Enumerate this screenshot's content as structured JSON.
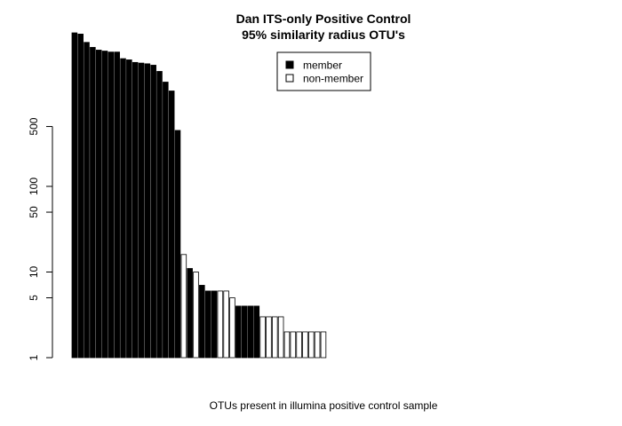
{
  "chart_data": {
    "type": "bar",
    "title": "Dan ITS-only Positive Control",
    "subtitle": "95% similarity radius OTU's",
    "xlabel": "OTUs present in illumina positive control sample",
    "ylabel": "",
    "y_scale": "log",
    "ylim": [
      1,
      10000
    ],
    "y_ticks": [
      1,
      5,
      10,
      50,
      100,
      500
    ],
    "y_tick_labels": [
      "1",
      "5",
      "10",
      "50",
      "100",
      "500"
    ],
    "grid": false,
    "legend_position": "top-center",
    "legend": [
      {
        "label": "member",
        "fill": "#000000"
      },
      {
        "label": "non-member",
        "fill": "#ffffff"
      }
    ],
    "bar_outline_color": "#000000",
    "series": [
      {
        "values": [
          6200,
          6000,
          4800,
          4200,
          3900,
          3800,
          3700,
          3700,
          3100,
          3000,
          2800,
          2750,
          2700,
          2600,
          2200,
          1650,
          1300,
          450,
          16,
          11,
          10,
          7,
          6,
          6,
          6,
          6,
          5,
          4,
          4,
          4,
          4,
          3,
          3,
          3,
          3,
          2,
          2,
          2,
          2,
          2,
          2,
          2,
          1,
          1,
          1,
          1,
          1,
          1,
          1,
          1,
          1,
          1,
          1,
          1,
          1,
          1,
          1,
          1,
          1,
          1,
          1,
          1,
          1,
          1,
          1,
          1,
          1,
          1,
          1,
          1,
          1,
          1,
          1,
          1,
          1,
          1,
          1,
          1,
          1,
          1,
          1,
          1,
          1
        ],
        "member": [
          true,
          true,
          true,
          true,
          true,
          true,
          true,
          true,
          true,
          true,
          true,
          true,
          true,
          true,
          true,
          true,
          true,
          true,
          false,
          true,
          false,
          true,
          true,
          true,
          false,
          false,
          false,
          true,
          true,
          true,
          true,
          false,
          false,
          false,
          false,
          false,
          false,
          false,
          false,
          false,
          false,
          false,
          false,
          true,
          false,
          false,
          true,
          true,
          false,
          false,
          false,
          false,
          false,
          false,
          false,
          false,
          false,
          false,
          false,
          false,
          false,
          false,
          false,
          false,
          false,
          false,
          false,
          false,
          false,
          false,
          false,
          false,
          false,
          false,
          false,
          false,
          false,
          false,
          false,
          false,
          false,
          false,
          false
        ]
      }
    ]
  }
}
